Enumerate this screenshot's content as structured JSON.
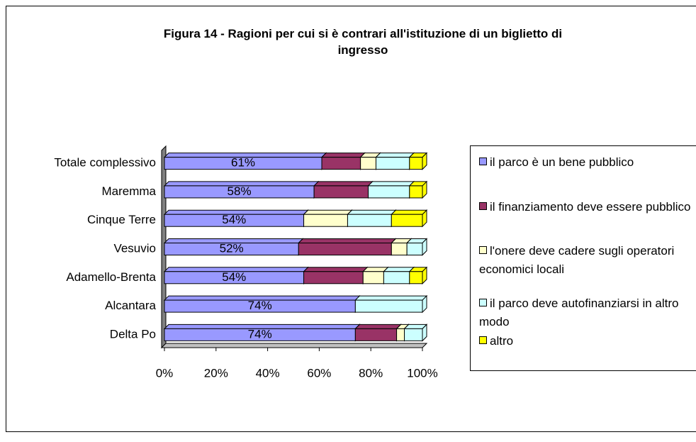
{
  "chart_data": {
    "type": "bar",
    "orientation": "horizontal",
    "stacked": true,
    "title": "Figura 14 - Ragioni per cui si è contrari all'istituzione di un biglietto di ingresso",
    "categories": [
      "Totale complessivo",
      "Maremma",
      "Cinque Terre",
      "Vesuvio",
      "Adamello-Brenta",
      "Alcantara",
      "Delta Po"
    ],
    "series": [
      {
        "name": "il parco è un bene pubblico",
        "color": "#9999ff",
        "values": [
          61,
          58,
          54,
          52,
          54,
          74,
          74
        ],
        "value_labels": [
          "61%",
          "58%",
          "54%",
          "52%",
          "54%",
          "74%",
          "74%"
        ]
      },
      {
        "name": "il finanziamento deve essere pubblico",
        "color": "#993366",
        "values": [
          15,
          21,
          0,
          36,
          23,
          0,
          16
        ]
      },
      {
        "name": "l'onere deve cadere sugli operatori economici locali",
        "color": "#ffffcc",
        "values": [
          6,
          0,
          17,
          6,
          8,
          0,
          3
        ]
      },
      {
        "name": "il parco deve autofinanziarsi in altro modo",
        "color": "#ccffff",
        "values": [
          13,
          16,
          17,
          6,
          10,
          26,
          7
        ]
      },
      {
        "name": "altro",
        "color": "#ffff00",
        "values": [
          5,
          5,
          12,
          0,
          5,
          0,
          0
        ]
      }
    ],
    "xlim": [
      0,
      100
    ],
    "xticks": [
      {
        "value": 0,
        "label": "0%"
      },
      {
        "value": 20,
        "label": "20%"
      },
      {
        "value": 40,
        "label": "40%"
      },
      {
        "value": 60,
        "label": "60%"
      },
      {
        "value": 80,
        "label": "80%"
      },
      {
        "value": 100,
        "label": "100%"
      }
    ],
    "legend": "right"
  }
}
